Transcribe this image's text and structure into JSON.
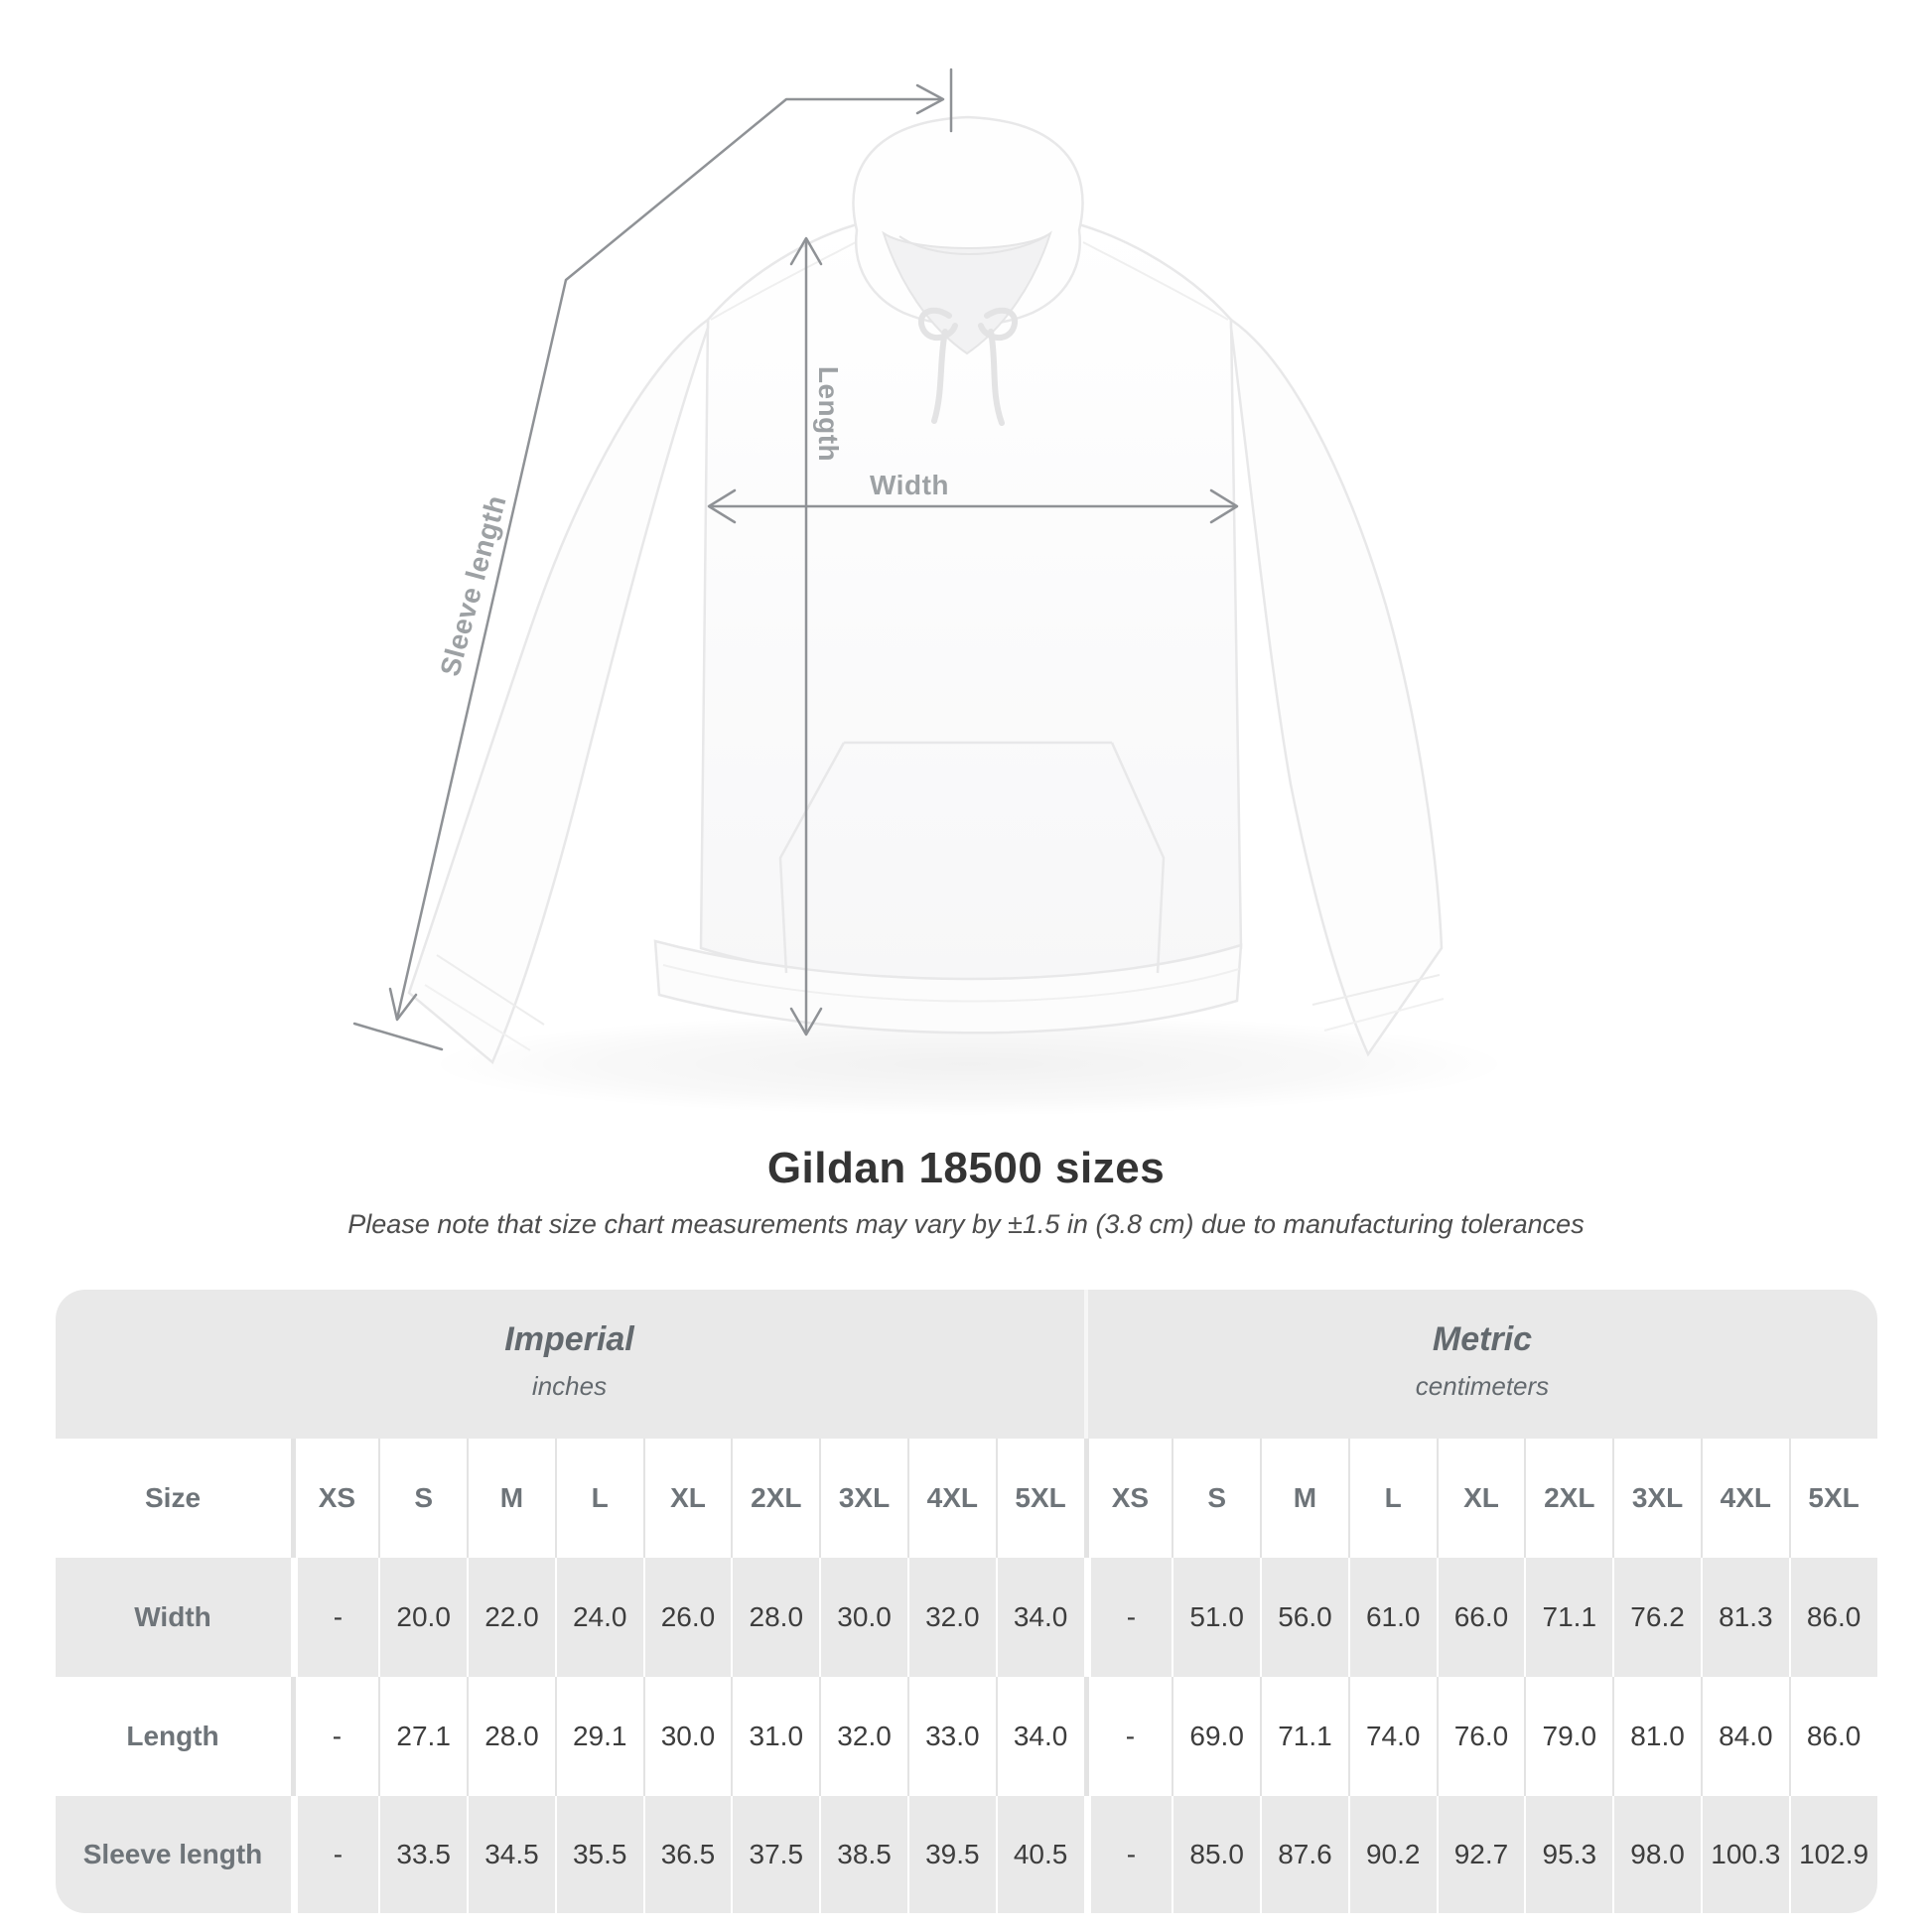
{
  "figure": {
    "width_label": "Width",
    "length_label": "Length",
    "sleeve_length_label": "Sleeve length"
  },
  "title": "Gildan 18500 sizes",
  "subtitle": "Please note that size chart measurements may vary by ±1.5 in (3.8 cm) due to manufacturing tolerances",
  "table": {
    "size_col_header": "Size",
    "unit_groups": [
      {
        "name": "Imperial",
        "unit": "inches"
      },
      {
        "name": "Metric",
        "unit": "centimeters"
      }
    ],
    "size_headers": [
      "XS",
      "S",
      "M",
      "L",
      "XL",
      "2XL",
      "3XL",
      "4XL",
      "5XL",
      "XS",
      "S",
      "M",
      "L",
      "XL",
      "2XL",
      "3XL",
      "4XL",
      "5XL"
    ],
    "rows": [
      {
        "label": "Width",
        "values": [
          "-",
          "20.0",
          "22.0",
          "24.0",
          "26.0",
          "28.0",
          "30.0",
          "32.0",
          "34.0",
          "-",
          "51.0",
          "56.0",
          "61.0",
          "66.0",
          "71.1",
          "76.2",
          "81.3",
          "86.0"
        ]
      },
      {
        "label": "Length",
        "values": [
          "-",
          "27.1",
          "28.0",
          "29.1",
          "30.0",
          "31.0",
          "32.0",
          "33.0",
          "34.0",
          "-",
          "69.0",
          "71.1",
          "74.0",
          "76.0",
          "79.0",
          "81.0",
          "84.0",
          "86.0"
        ]
      },
      {
        "label": "Sleeve length",
        "values": [
          "-",
          "33.5",
          "34.5",
          "35.5",
          "36.5",
          "37.5",
          "38.5",
          "39.5",
          "40.5",
          "-",
          "85.0",
          "87.6",
          "90.2",
          "92.7",
          "95.3",
          "98.0",
          "100.3",
          "102.9"
        ]
      }
    ]
  },
  "colors": {
    "band_bg": "#e9e9e9",
    "row_alt_bg": "#e9e9e9",
    "header_text": "#6e7479",
    "value_text": "#3d3d3d",
    "figure_label": "#9da1a4",
    "measure_line": "#8f9296",
    "title_text": "#343434"
  }
}
